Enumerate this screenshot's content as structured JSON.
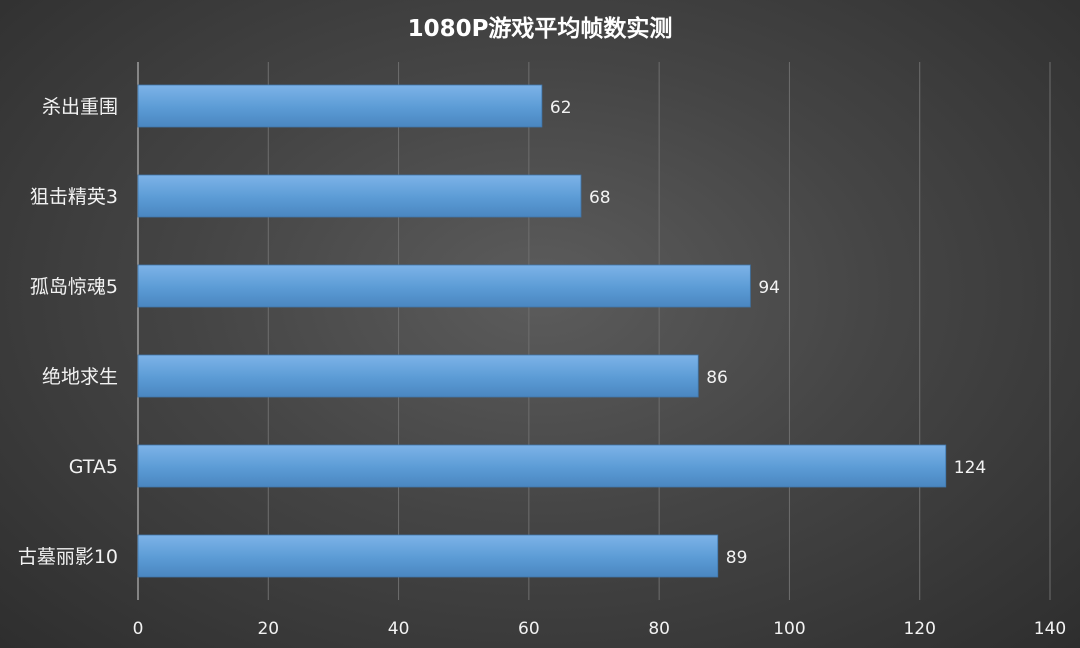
{
  "chart_data": {
    "type": "bar",
    "orientation": "horizontal",
    "title": "1080P游戏平均帧数实测",
    "categories": [
      "杀出重围",
      "狙击精英3",
      "孤岛惊魂5",
      "绝地求生",
      "GTA5",
      "古墓丽影10"
    ],
    "values": [
      62,
      68,
      94,
      86,
      124,
      89
    ],
    "xlim": [
      0,
      140
    ],
    "xticks": [
      0,
      20,
      40,
      60,
      80,
      100,
      120,
      140
    ],
    "xlabel": "",
    "ylabel": "",
    "grid": true,
    "legend": "none",
    "bar_color": "#5b9bd5",
    "data_labels": true
  }
}
